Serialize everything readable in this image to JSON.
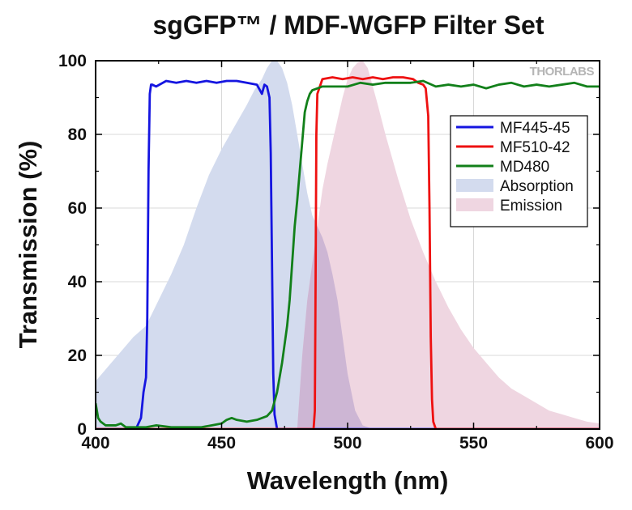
{
  "chart_data": {
    "type": "area",
    "title": "sgGFP™ / MDF-WGFP Filter Set",
    "xlabel": "Wavelength (nm)",
    "ylabel": "Transmission (%)",
    "xlim": [
      400,
      600
    ],
    "ylim": [
      0,
      100
    ],
    "xticks": [
      400,
      450,
      500,
      550,
      600
    ],
    "yticks": [
      0,
      20,
      40,
      60,
      80,
      100
    ],
    "grid": true,
    "legend_position": "upper-right",
    "watermark": "THORLABS",
    "colors": {
      "mf445": "#1515e0",
      "mf510": "#ee1111",
      "md480": "#12801a",
      "absorption": "#d3dbee",
      "emission": "#efd6e1",
      "overlap": "#cdb6d4",
      "grid": "#d8d8d8"
    },
    "series": [
      {
        "name": "MF445-45",
        "kind": "line",
        "x": [
          400,
          416,
          418,
          419,
          420,
          420.5,
          421,
          421.5,
          422,
          422.5,
          424,
          428,
          432,
          436,
          440,
          444,
          448,
          452,
          456,
          460,
          464,
          466,
          467,
          468,
          469,
          469.5,
          470,
          470.5,
          471,
          472,
          600
        ],
        "y": [
          0,
          0,
          3,
          10,
          14,
          30,
          70,
          91,
          93.5,
          93.5,
          93,
          94.5,
          94,
          94.5,
          94,
          94.5,
          94,
          94.5,
          94.5,
          94,
          93.5,
          91,
          93.5,
          93,
          90,
          75,
          45,
          15,
          4,
          0,
          0
        ]
      },
      {
        "name": "MF510-42",
        "kind": "line",
        "x": [
          400,
          486.5,
          487,
          487.3,
          487.6,
          488,
          489,
          490,
          494,
          498,
          502,
          506,
          510,
          514,
          518,
          522,
          526,
          528,
          530,
          531,
          532,
          532.5,
          533,
          533.5,
          534,
          535,
          600
        ],
        "y": [
          0,
          0,
          5,
          40,
          80,
          91,
          93,
          95,
          95.5,
          95,
          95.5,
          95,
          95.5,
          95,
          95.5,
          95.5,
          95,
          94,
          93.5,
          92.5,
          85,
          60,
          25,
          8,
          2,
          0,
          0
        ]
      },
      {
        "name": "MD480",
        "kind": "line",
        "x": [
          400,
          401,
          402,
          404,
          406,
          408,
          410,
          412,
          416,
          420,
          424,
          430,
          436,
          442,
          446,
          450,
          452,
          454,
          456,
          460,
          464,
          468,
          470,
          472,
          474,
          476,
          477,
          478,
          479,
          480,
          481,
          482,
          483,
          484,
          485,
          486,
          488,
          490,
          494,
          500,
          505,
          510,
          515,
          520,
          525,
          530,
          535,
          540,
          545,
          550,
          555,
          560,
          565,
          570,
          575,
          580,
          585,
          590,
          595,
          600
        ],
        "y": [
          7,
          3,
          2,
          1,
          1,
          1,
          1.5,
          0.5,
          0.5,
          0.5,
          1,
          0.5,
          0.5,
          0.5,
          1,
          1.5,
          2.5,
          3,
          2.5,
          2,
          2.5,
          3.5,
          5,
          10,
          18,
          28,
          35,
          45,
          55,
          62,
          70,
          78,
          86,
          89,
          91,
          92,
          92.5,
          93,
          93,
          93,
          94,
          93.5,
          94,
          94,
          94,
          94.5,
          93,
          93.5,
          93,
          93.5,
          92.5,
          93.5,
          94,
          93,
          93.5,
          93,
          93.5,
          94,
          93,
          93
        ]
      },
      {
        "name": "Absorption",
        "kind": "fill",
        "x": [
          400,
          405,
          410,
          415,
          420,
          425,
          430,
          435,
          440,
          445,
          450,
          455,
          460,
          463,
          466,
          468,
          470,
          472,
          474,
          476,
          478,
          480,
          482,
          484,
          486,
          488,
          490,
          492,
          494,
          496,
          498,
          500,
          503,
          506,
          510
        ],
        "y": [
          13,
          17,
          21,
          25,
          28,
          35,
          42,
          50,
          60,
          69,
          76,
          82,
          88,
          92,
          95,
          98,
          100,
          100,
          98,
          94,
          88,
          80,
          72,
          64,
          58,
          55,
          52,
          48,
          42,
          35,
          25,
          15,
          5,
          1,
          0
        ]
      },
      {
        "name": "Emission",
        "kind": "fill",
        "x": [
          480,
          482,
          484,
          486,
          488,
          490,
          492,
          494,
          496,
          498,
          500,
          502,
          504,
          506,
          508,
          510,
          512,
          515,
          520,
          525,
          530,
          535,
          540,
          545,
          550,
          555,
          560,
          565,
          570,
          575,
          580,
          585,
          590,
          595,
          600
        ],
        "y": [
          0,
          20,
          35,
          45,
          55,
          65,
          72,
          78,
          84,
          90,
          95,
          98,
          99.5,
          100,
          98,
          93,
          88,
          80,
          68,
          57,
          48,
          40,
          33,
          27,
          22,
          18,
          14,
          11,
          9,
          7,
          5,
          4,
          3,
          2,
          1.5
        ]
      }
    ]
  }
}
